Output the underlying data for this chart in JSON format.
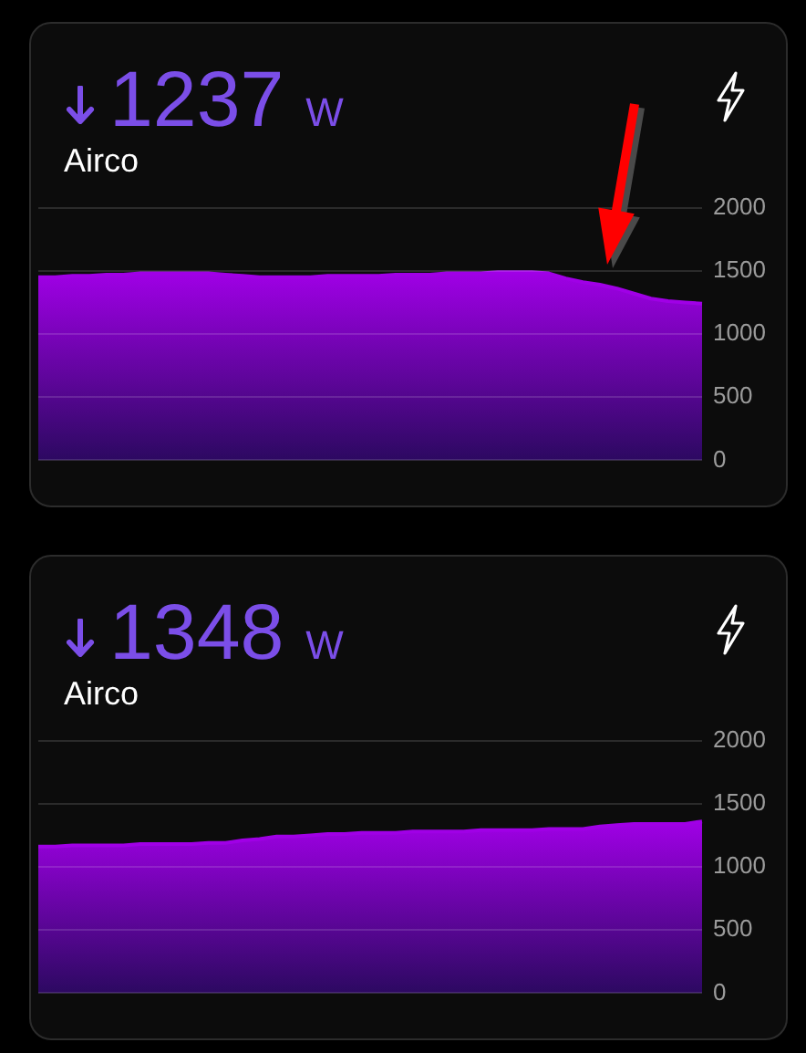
{
  "chart_data": [
    {
      "type": "area",
      "title": "1237 W",
      "subtitle": "Airco",
      "categories": [
        null,
        null,
        null,
        null,
        null,
        null,
        null,
        null,
        null,
        null,
        null,
        null,
        null,
        null,
        null,
        null,
        null,
        null,
        null,
        null,
        null,
        null,
        null,
        null,
        null,
        null,
        null,
        null,
        null,
        null,
        null,
        null,
        null,
        null,
        null,
        null,
        null,
        null,
        null,
        null
      ],
      "series": [
        {
          "color": "#a000e6",
          "values": [
            1450,
            1450,
            1460,
            1460,
            1470,
            1470,
            1480,
            1480,
            1480,
            1480,
            1480,
            1470,
            1460,
            1450,
            1450,
            1450,
            1450,
            1460,
            1460,
            1460,
            1460,
            1470,
            1470,
            1470,
            1480,
            1480,
            1480,
            1490,
            1490,
            1490,
            1480,
            1440,
            1410,
            1390,
            1360,
            1320,
            1280,
            1260,
            1250,
            1240
          ]
        }
      ],
      "ylim": [
        0,
        2000
      ],
      "yticks": [
        0,
        500,
        1000,
        1500,
        2000
      ],
      "grid": "y",
      "tick_labels": "y"
    },
    {
      "type": "area",
      "title": "1348 W",
      "subtitle": "Airco",
      "categories": [
        null,
        null,
        null,
        null,
        null,
        null,
        null,
        null,
        null,
        null,
        null,
        null,
        null,
        null,
        null,
        null,
        null,
        null,
        null,
        null,
        null,
        null,
        null,
        null,
        null,
        null,
        null,
        null,
        null,
        null,
        null,
        null,
        null,
        null,
        null,
        null,
        null,
        null,
        null,
        null
      ],
      "series": [
        {
          "color": "#a000e6",
          "values": [
            1160,
            1160,
            1170,
            1170,
            1170,
            1170,
            1180,
            1180,
            1180,
            1180,
            1190,
            1190,
            1210,
            1220,
            1240,
            1240,
            1250,
            1260,
            1260,
            1270,
            1270,
            1270,
            1280,
            1280,
            1280,
            1280,
            1290,
            1290,
            1290,
            1290,
            1300,
            1300,
            1300,
            1320,
            1330,
            1340,
            1340,
            1340,
            1340,
            1360
          ]
        }
      ],
      "ylim": [
        0,
        2000
      ],
      "yticks": [
        0,
        500,
        1000,
        1500,
        2000
      ],
      "grid": "y",
      "tick_labels": "y"
    }
  ]
}
